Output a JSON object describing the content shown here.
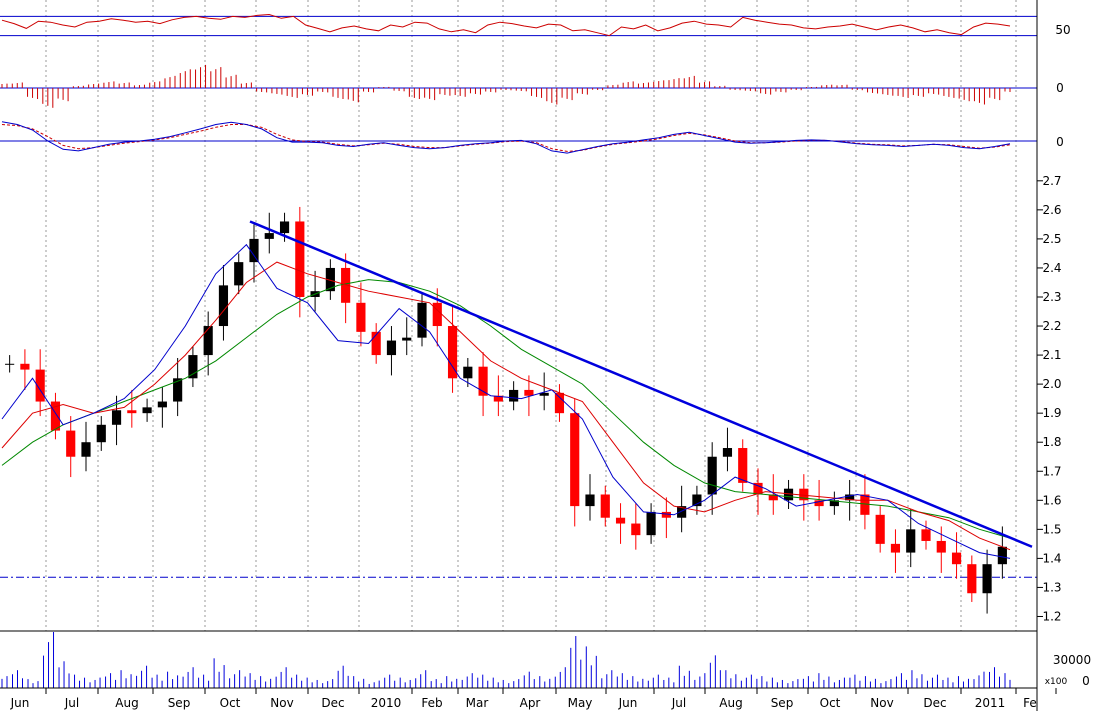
{
  "chart_data": {
    "type": "line",
    "colors": {
      "up_candle": "#ff0000",
      "down_candle": "#000000",
      "ma_short": "#0000cc",
      "ma_mid": "#dd0000",
      "ma_long": "#008800",
      "trendline": "#0000dd",
      "support_line": "#0000cc",
      "rsi_line": "#cc0000",
      "volume_bar": "#0000dd",
      "grid": "#9a9a9a"
    },
    "x_tick_labels": [
      "Jun",
      "Jul",
      "Aug",
      "Sep",
      "Oct",
      "Nov",
      "Dec",
      "2010",
      "Feb",
      "Mar",
      "Apr",
      "May",
      "Jun",
      "Jul",
      "Aug",
      "Sep",
      "Oct",
      "Nov",
      "Dec",
      "2011",
      "Fe"
    ],
    "panels": [
      {
        "name": "rsi",
        "y_ticks": [
          "50"
        ],
        "ylim": [
          0,
          100
        ],
        "reference_levels": [
          70,
          30
        ],
        "values_start_date": "2009-06",
        "values": [
          62,
          55,
          45,
          60,
          58,
          52,
          48,
          58,
          60,
          65,
          62,
          58,
          60,
          55,
          63,
          68,
          70,
          66,
          64,
          70,
          68,
          72,
          74,
          66,
          70,
          52,
          45,
          38,
          46,
          50,
          44,
          40,
          52,
          48,
          58,
          56,
          44,
          38,
          42,
          36,
          52,
          58,
          55,
          50,
          46,
          54,
          52,
          40,
          42,
          36,
          30,
          48,
          44,
          52,
          40,
          46,
          56,
          60,
          54,
          52,
          48,
          68,
          62,
          58,
          54,
          52,
          46,
          44,
          48,
          50,
          54,
          48,
          42,
          48,
          52,
          46,
          38,
          42,
          36,
          32,
          48,
          56,
          54,
          50
        ]
      },
      {
        "name": "macd_histogram",
        "y_ticks": [
          "0"
        ],
        "values": [
          0.2,
          0.25,
          -0.5,
          -0.9,
          -0.6,
          0.1,
          0.2,
          0.3,
          0.25,
          0.15,
          0.3,
          0.55,
          0.85,
          1.05,
          0.95,
          0.6,
          0.25,
          -0.2,
          -0.3,
          -0.45,
          -0.35,
          -0.2,
          -0.5,
          -0.65,
          -0.2,
          0.05,
          -0.15,
          -0.5,
          -0.55,
          -0.35,
          -0.4,
          -0.3,
          -0.2,
          -0.1,
          -0.15,
          -0.45,
          -0.75,
          -0.55,
          -0.3,
          -0.1,
          0.15,
          0.3,
          0.25,
          0.35,
          0.45,
          0.55,
          0.3,
          0.1,
          -0.1,
          -0.15,
          -0.3,
          -0.2,
          -0.1,
          0.05,
          0.15,
          0.15,
          -0.1,
          -0.25,
          -0.35,
          -0.45,
          -0.4,
          -0.3,
          -0.45,
          -0.6,
          -0.75,
          -0.55,
          -0.2
        ]
      },
      {
        "name": "macd",
        "y_ticks": [
          "0"
        ],
        "macd": [
          0.35,
          0.3,
          0.2,
          0.0,
          -0.15,
          -0.18,
          -0.12,
          -0.06,
          -0.02,
          0.0,
          0.03,
          0.08,
          0.15,
          0.22,
          0.3,
          0.34,
          0.3,
          0.22,
          0.06,
          -0.02,
          -0.02,
          -0.03,
          -0.08,
          -0.1,
          -0.06,
          -0.03,
          -0.08,
          -0.12,
          -0.14,
          -0.12,
          -0.08,
          -0.05,
          -0.03,
          0.0,
          0.01,
          -0.05,
          -0.18,
          -0.22,
          -0.16,
          -0.1,
          -0.05,
          -0.02,
          0.02,
          0.06,
          0.12,
          0.16,
          0.1,
          0.04,
          -0.02,
          -0.04,
          -0.03,
          -0.01,
          0.01,
          0.02,
          0.01,
          -0.02,
          -0.05,
          -0.07,
          -0.08,
          -0.1,
          -0.08,
          -0.06,
          -0.08,
          -0.12,
          -0.14,
          -0.1,
          -0.05
        ],
        "signal": [
          0.3,
          0.28,
          0.22,
          0.08,
          -0.08,
          -0.14,
          -0.12,
          -0.08,
          -0.04,
          -0.01,
          0.02,
          0.06,
          0.12,
          0.18,
          0.25,
          0.3,
          0.3,
          0.25,
          0.12,
          0.02,
          -0.01,
          -0.02,
          -0.06,
          -0.09,
          -0.07,
          -0.04,
          -0.06,
          -0.1,
          -0.12,
          -0.12,
          -0.09,
          -0.06,
          -0.04,
          -0.01,
          0.0,
          -0.03,
          -0.14,
          -0.19,
          -0.17,
          -0.11,
          -0.06,
          -0.03,
          0.0,
          0.04,
          0.1,
          0.14,
          0.11,
          0.06,
          0.0,
          -0.03,
          -0.03,
          -0.02,
          0.0,
          0.01,
          0.01,
          -0.01,
          -0.04,
          -0.06,
          -0.07,
          -0.09,
          -0.08,
          -0.06,
          -0.07,
          -0.1,
          -0.13,
          -0.11,
          -0.07
        ]
      }
    ],
    "price_panel": {
      "ylim": [
        1.15,
        2.72
      ],
      "y_ticks": [
        "2.7",
        "2.6",
        "2.5",
        "2.4",
        "2.3",
        "2.2",
        "2.1",
        "2.0",
        "1.9",
        "1.8",
        "1.7",
        "1.6",
        "1.5",
        "1.4",
        "1.3",
        "1.2"
      ],
      "support_level": 1.335,
      "trendline": {
        "from": [
          "2009-10",
          2.56
        ],
        "to": [
          "2011-02",
          1.44
        ]
      },
      "series": [
        {
          "name": "ma_long",
          "values": [
            1.72,
            1.8,
            1.86,
            1.9,
            1.94,
            1.98,
            2.02,
            2.08,
            2.16,
            2.24,
            2.3,
            2.34,
            2.36,
            2.35,
            2.32,
            2.27,
            2.2,
            2.12,
            2.06,
            2.0,
            1.9,
            1.8,
            1.72,
            1.66,
            1.63,
            1.62,
            1.61,
            1.6,
            1.59,
            1.58,
            1.56,
            1.54,
            1.5,
            1.47
          ]
        },
        {
          "name": "ma_mid",
          "values": [
            1.78,
            1.9,
            1.93,
            1.9,
            1.92,
            2.0,
            2.1,
            2.22,
            2.35,
            2.42,
            2.38,
            2.35,
            2.32,
            2.3,
            2.28,
            2.18,
            2.08,
            2.02,
            1.98,
            1.94,
            1.8,
            1.66,
            1.58,
            1.56,
            1.6,
            1.63,
            1.62,
            1.61,
            1.6,
            1.6,
            1.56,
            1.53,
            1.47,
            1.43
          ]
        },
        {
          "name": "ma_short",
          "values": [
            1.88,
            2.02,
            1.86,
            1.9,
            1.95,
            2.05,
            2.2,
            2.38,
            2.48,
            2.33,
            2.28,
            2.15,
            2.14,
            2.26,
            2.18,
            2.02,
            1.96,
            1.95,
            1.98,
            1.88,
            1.68,
            1.56,
            1.55,
            1.6,
            1.68,
            1.64,
            1.58,
            1.6,
            1.62,
            1.6,
            1.52,
            1.47,
            1.42,
            1.4
          ]
        }
      ],
      "closes_start_date": "2009-06",
      "closes_interval": "weekly",
      "closes": [
        2.07,
        2.05,
        1.94,
        1.84,
        1.75,
        1.8,
        1.86,
        1.91,
        1.9,
        1.92,
        1.94,
        2.02,
        2.1,
        2.2,
        2.34,
        2.42,
        2.5,
        2.52,
        2.56,
        2.3,
        2.32,
        2.4,
        2.28,
        2.18,
        2.1,
        2.15,
        2.16,
        2.28,
        2.2,
        2.02,
        2.06,
        1.96,
        1.94,
        1.98,
        1.96,
        1.97,
        1.9,
        1.58,
        1.62,
        1.54,
        1.52,
        1.48,
        1.56,
        1.54,
        1.58,
        1.62,
        1.75,
        1.78,
        1.66,
        1.62,
        1.6,
        1.64,
        1.6,
        1.58,
        1.6,
        1.62,
        1.55,
        1.45,
        1.42,
        1.5,
        1.46,
        1.42,
        1.38,
        1.28,
        1.38,
        1.44
      ]
    },
    "volume_panel": {
      "y_ticks": [
        "30000",
        "0"
      ],
      "unit_label": "x100",
      "values": [
        8,
        12,
        6,
        40,
        18,
        9,
        7,
        10,
        12,
        15,
        9,
        11,
        14,
        9,
        20,
        12,
        10,
        8,
        14,
        9,
        7,
        6,
        15,
        8,
        5,
        9,
        7,
        12,
        6,
        8,
        10,
        9,
        7,
        6,
        11,
        8,
        14,
        35,
        28,
        12,
        10,
        8,
        9,
        7,
        15,
        10,
        22,
        12,
        9,
        8,
        7,
        6,
        8,
        10,
        7,
        9,
        8,
        6,
        10,
        12,
        9,
        7,
        8,
        11,
        14,
        10
      ]
    }
  }
}
